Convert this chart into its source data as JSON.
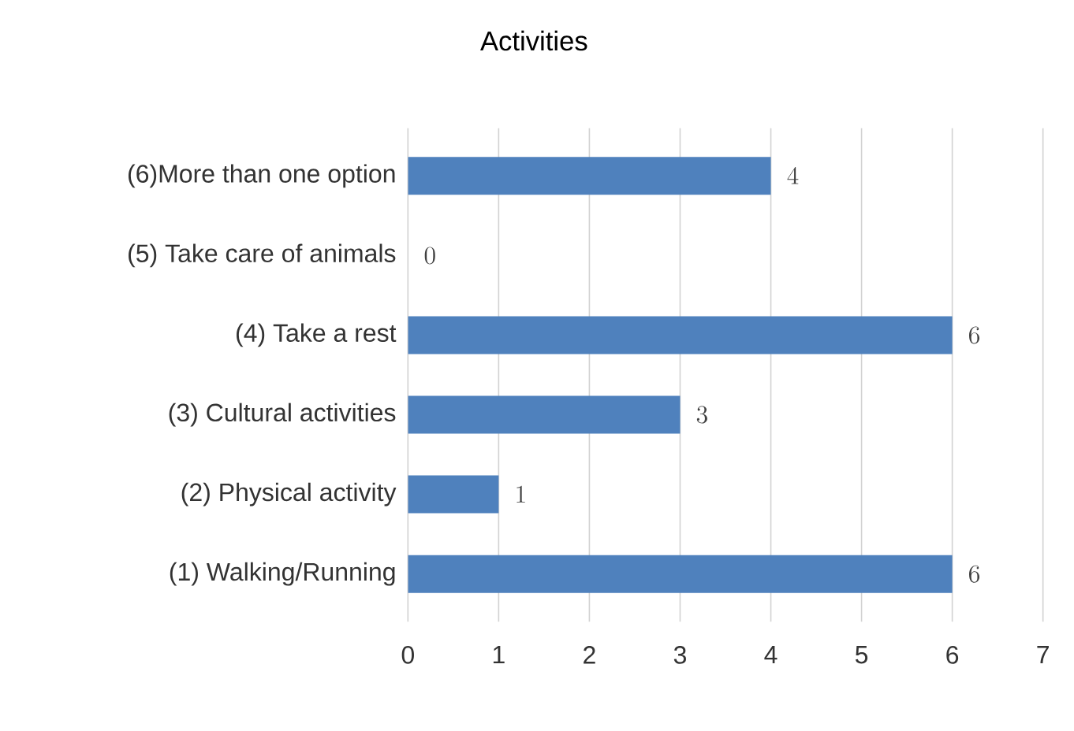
{
  "chart_data": {
    "type": "bar",
    "orientation": "horizontal",
    "title": "Activities",
    "categories": [
      "(6)More than one option",
      "(5) Take care of animals",
      "(4) Take a rest",
      "(3) Cultural activities",
      "(2) Physical activity",
      "(1) Walking/Running"
    ],
    "values": [
      4,
      0,
      6,
      3,
      1,
      6
    ],
    "color": "#4f81bd",
    "xlim": [
      0,
      7
    ],
    "xticks": [
      0,
      1,
      2,
      3,
      4,
      5,
      6,
      7
    ],
    "grid": "x",
    "data_labels": true
  }
}
